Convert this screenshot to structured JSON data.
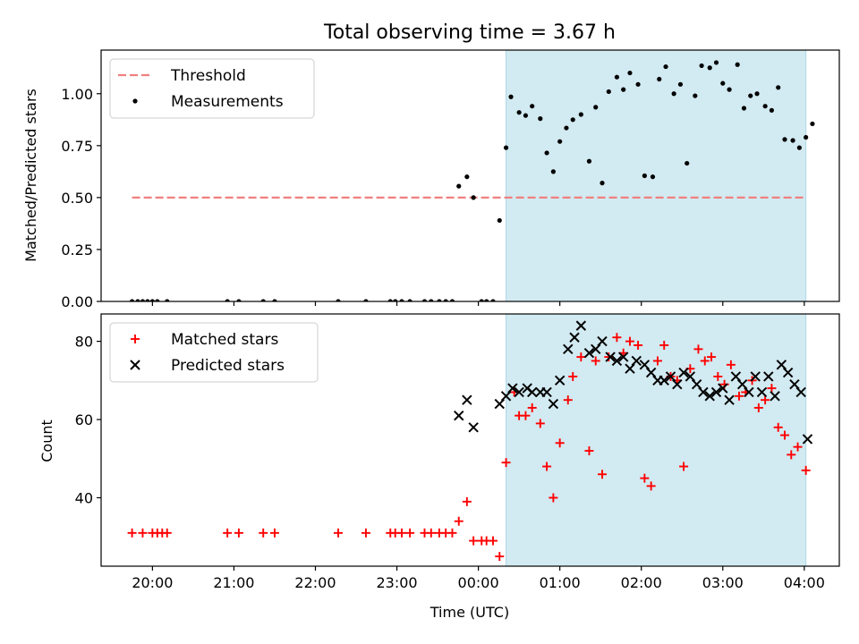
{
  "chart_data": {
    "title": "Total observing time = 3.67 h",
    "xlabel": "Time (UTC)",
    "x_ticks": [
      "20:00",
      "21:00",
      "22:00",
      "23:00",
      "00:00",
      "01:00",
      "02:00",
      "03:00",
      "04:00"
    ],
    "x_tick_hours": [
      0,
      1,
      2,
      3,
      4,
      5,
      6,
      7,
      8
    ],
    "x_range_hours": [
      -0.63,
      8.43
    ],
    "x_origin": "20:00",
    "observing_window_hours": [
      4.34,
      8.02
    ],
    "colors": {
      "threshold": "#f08080",
      "measurements": "#000000",
      "matched": "#ff0000",
      "predicted": "#000000",
      "window": "#add8e6"
    },
    "panels": [
      {
        "type": "scatter",
        "ylabel": "Matched/Predicted stars",
        "ylim": [
          0,
          1.21
        ],
        "y_ticks": [
          "0.00",
          "0.25",
          "0.50",
          "0.75",
          "1.00"
        ],
        "y_tick_values": [
          0,
          0.25,
          0.5,
          0.75,
          1.0
        ],
        "legend_position": "top-left",
        "legend": [
          "Threshold",
          "Measurements"
        ],
        "threshold": {
          "name": "Threshold",
          "y": 0.5,
          "x_range": [
            -0.25,
            8.02
          ]
        },
        "series": [
          {
            "name": "Measurements",
            "marker": "dot",
            "points": [
              [
                -0.25,
                0
              ],
              [
                -0.18,
                0
              ],
              [
                -0.12,
                0
              ],
              [
                -0.06,
                0
              ],
              [
                0.0,
                0
              ],
              [
                0.06,
                0
              ],
              [
                0.18,
                0
              ],
              [
                0.92,
                0
              ],
              [
                1.06,
                0
              ],
              [
                1.36,
                0
              ],
              [
                1.5,
                0
              ],
              [
                2.28,
                0
              ],
              [
                2.62,
                0
              ],
              [
                2.92,
                0
              ],
              [
                2.98,
                0
              ],
              [
                3.06,
                0
              ],
              [
                3.16,
                0
              ],
              [
                3.34,
                0
              ],
              [
                3.42,
                0
              ],
              [
                3.52,
                0
              ],
              [
                3.6,
                0
              ],
              [
                3.68,
                0
              ],
              [
                3.76,
                0.555
              ],
              [
                3.86,
                0.6
              ],
              [
                3.94,
                0.5
              ],
              [
                4.04,
                0
              ],
              [
                4.1,
                0
              ],
              [
                4.18,
                0
              ],
              [
                4.26,
                0.39
              ],
              [
                4.34,
                0.74
              ],
              [
                4.4,
                0.985
              ],
              [
                4.5,
                0.91
              ],
              [
                4.58,
                0.895
              ],
              [
                4.66,
                0.94
              ],
              [
                4.76,
                0.88
              ],
              [
                4.84,
                0.715
              ],
              [
                4.92,
                0.625
              ],
              [
                5.0,
                0.77
              ],
              [
                5.08,
                0.835
              ],
              [
                5.16,
                0.875
              ],
              [
                5.26,
                0.9
              ],
              [
                5.36,
                0.675
              ],
              [
                5.44,
                0.935
              ],
              [
                5.52,
                0.57
              ],
              [
                5.6,
                1.01
              ],
              [
                5.7,
                1.08
              ],
              [
                5.78,
                1.02
              ],
              [
                5.86,
                1.1
              ],
              [
                5.96,
                1.045
              ],
              [
                6.04,
                0.605
              ],
              [
                6.14,
                0.6
              ],
              [
                6.22,
                1.07
              ],
              [
                6.3,
                1.13
              ],
              [
                6.4,
                1.0
              ],
              [
                6.48,
                1.045
              ],
              [
                6.56,
                0.665
              ],
              [
                6.66,
                0.99
              ],
              [
                6.74,
                1.135
              ],
              [
                6.84,
                1.125
              ],
              [
                6.92,
                1.15
              ],
              [
                7.0,
                1.05
              ],
              [
                7.08,
                1.02
              ],
              [
                7.18,
                1.14
              ],
              [
                7.26,
                0.93
              ],
              [
                7.34,
                0.99
              ],
              [
                7.42,
                1.0
              ],
              [
                7.52,
                0.94
              ],
              [
                7.6,
                0.92
              ],
              [
                7.68,
                1.03
              ],
              [
                7.76,
                0.78
              ],
              [
                7.86,
                0.775
              ],
              [
                7.94,
                0.74
              ],
              [
                8.02,
                0.79
              ],
              [
                8.1,
                0.855
              ]
            ]
          }
        ]
      },
      {
        "type": "scatter",
        "ylabel": "Count",
        "ylim": [
          22.5,
          87
        ],
        "y_ticks": [
          "40",
          "60",
          "80"
        ],
        "y_tick_values": [
          40,
          60,
          80
        ],
        "legend_position": "top-left",
        "legend": [
          "Matched stars",
          "Predicted stars"
        ],
        "series": [
          {
            "name": "Matched stars",
            "marker": "plus",
            "points": [
              [
                -0.25,
                31
              ],
              [
                -0.12,
                31
              ],
              [
                0.0,
                31
              ],
              [
                0.06,
                31
              ],
              [
                0.12,
                31
              ],
              [
                0.18,
                31
              ],
              [
                0.92,
                31
              ],
              [
                1.06,
                31
              ],
              [
                1.36,
                31
              ],
              [
                1.5,
                31
              ],
              [
                2.28,
                31
              ],
              [
                2.62,
                31
              ],
              [
                2.92,
                31
              ],
              [
                2.98,
                31
              ],
              [
                3.06,
                31
              ],
              [
                3.16,
                31
              ],
              [
                3.34,
                31
              ],
              [
                3.42,
                31
              ],
              [
                3.52,
                31
              ],
              [
                3.6,
                31
              ],
              [
                3.68,
                31
              ],
              [
                3.76,
                34
              ],
              [
                3.86,
                39
              ],
              [
                3.94,
                29
              ],
              [
                4.04,
                29
              ],
              [
                4.1,
                29
              ],
              [
                4.18,
                29
              ],
              [
                4.26,
                25
              ],
              [
                4.34,
                49
              ],
              [
                4.44,
                67
              ],
              [
                4.5,
                61
              ],
              [
                4.58,
                61
              ],
              [
                4.66,
                63
              ],
              [
                4.76,
                59
              ],
              [
                4.84,
                48
              ],
              [
                4.92,
                40
              ],
              [
                5.0,
                54
              ],
              [
                5.1,
                65
              ],
              [
                5.16,
                71
              ],
              [
                5.26,
                76
              ],
              [
                5.36,
                52
              ],
              [
                5.44,
                75
              ],
              [
                5.52,
                46
              ],
              [
                5.6,
                76
              ],
              [
                5.7,
                81
              ],
              [
                5.78,
                77
              ],
              [
                5.86,
                80
              ],
              [
                5.96,
                79
              ],
              [
                6.04,
                45
              ],
              [
                6.12,
                43
              ],
              [
                6.2,
                75
              ],
              [
                6.28,
                79
              ],
              [
                6.36,
                71
              ],
              [
                6.44,
                70
              ],
              [
                6.52,
                48
              ],
              [
                6.6,
                73
              ],
              [
                6.7,
                78
              ],
              [
                6.78,
                75
              ],
              [
                6.86,
                76
              ],
              [
                6.94,
                71
              ],
              [
                7.02,
                69
              ],
              [
                7.1,
                74
              ],
              [
                7.2,
                66
              ],
              [
                7.28,
                67
              ],
              [
                7.36,
                70
              ],
              [
                7.44,
                63
              ],
              [
                7.52,
                65
              ],
              [
                7.6,
                68
              ],
              [
                7.68,
                58
              ],
              [
                7.76,
                56
              ],
              [
                7.84,
                51
              ],
              [
                7.92,
                53
              ],
              [
                8.02,
                47
              ]
            ]
          },
          {
            "name": "Predicted stars",
            "marker": "x",
            "points": [
              [
                3.76,
                61
              ],
              [
                3.86,
                65
              ],
              [
                3.94,
                58
              ],
              [
                4.26,
                64
              ],
              [
                4.34,
                66
              ],
              [
                4.42,
                68
              ],
              [
                4.5,
                67
              ],
              [
                4.6,
                68
              ],
              [
                4.66,
                67
              ],
              [
                4.76,
                67
              ],
              [
                4.84,
                67
              ],
              [
                4.92,
                64
              ],
              [
                5.0,
                70
              ],
              [
                5.1,
                78
              ],
              [
                5.18,
                81
              ],
              [
                5.26,
                84
              ],
              [
                5.36,
                77
              ],
              [
                5.44,
                78
              ],
              [
                5.52,
                80
              ],
              [
                5.62,
                76
              ],
              [
                5.7,
                75
              ],
              [
                5.78,
                76
              ],
              [
                5.86,
                73
              ],
              [
                5.94,
                75
              ],
              [
                6.04,
                74
              ],
              [
                6.12,
                72
              ],
              [
                6.2,
                70
              ],
              [
                6.28,
                70
              ],
              [
                6.36,
                71
              ],
              [
                6.44,
                69
              ],
              [
                6.52,
                72
              ],
              [
                6.6,
                71
              ],
              [
                6.68,
                69
              ],
              [
                6.76,
                67
              ],
              [
                6.84,
                66
              ],
              [
                6.92,
                67
              ],
              [
                7.0,
                68
              ],
              [
                7.08,
                65
              ],
              [
                7.16,
                71
              ],
              [
                7.24,
                69
              ],
              [
                7.32,
                67
              ],
              [
                7.4,
                71
              ],
              [
                7.48,
                67
              ],
              [
                7.56,
                71
              ],
              [
                7.64,
                66
              ],
              [
                7.72,
                74
              ],
              [
                7.8,
                72
              ],
              [
                7.88,
                69
              ],
              [
                7.96,
                67
              ],
              [
                8.04,
                55
              ]
            ]
          }
        ]
      }
    ]
  }
}
